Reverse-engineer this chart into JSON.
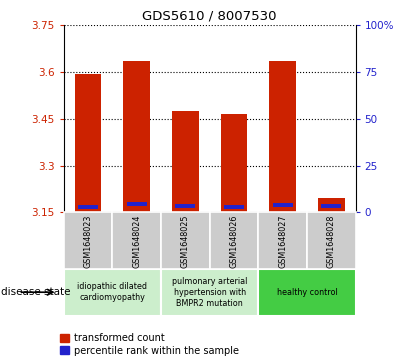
{
  "title": "GDS5610 / 8007530",
  "samples": [
    "GSM1648023",
    "GSM1648024",
    "GSM1648025",
    "GSM1648026",
    "GSM1648027",
    "GSM1648028"
  ],
  "transformed_count": [
    3.595,
    3.635,
    3.475,
    3.465,
    3.635,
    3.195
  ],
  "percentile_rank": [
    2.0,
    3.5,
    2.5,
    2.0,
    3.0,
    2.5
  ],
  "ymin": 3.15,
  "ymax": 3.75,
  "y_ticks": [
    3.15,
    3.3,
    3.45,
    3.6,
    3.75
  ],
  "right_yticks": [
    0,
    25,
    50,
    75,
    100
  ],
  "bar_color_red": "#cc2200",
  "bar_color_blue": "#2222cc",
  "legend_red": "transformed count",
  "legend_blue": "percentile rank within the sample",
  "disease_state_label": "disease state",
  "bg_color_plot": "#ffffff",
  "bg_color_sample": "#cccccc",
  "tick_label_color_left": "#cc2200",
  "tick_label_color_right": "#2222cc",
  "group_labels": [
    "idiopathic dilated\ncardiomyopathy",
    "pulmonary arterial\nhypertension with\nBMPR2 mutation",
    "healthy control"
  ],
  "group_ranges": [
    [
      0,
      1
    ],
    [
      2,
      3
    ],
    [
      4,
      5
    ]
  ],
  "group_bg_light": "#cceecc",
  "group_bg_dark": "#44cc44"
}
